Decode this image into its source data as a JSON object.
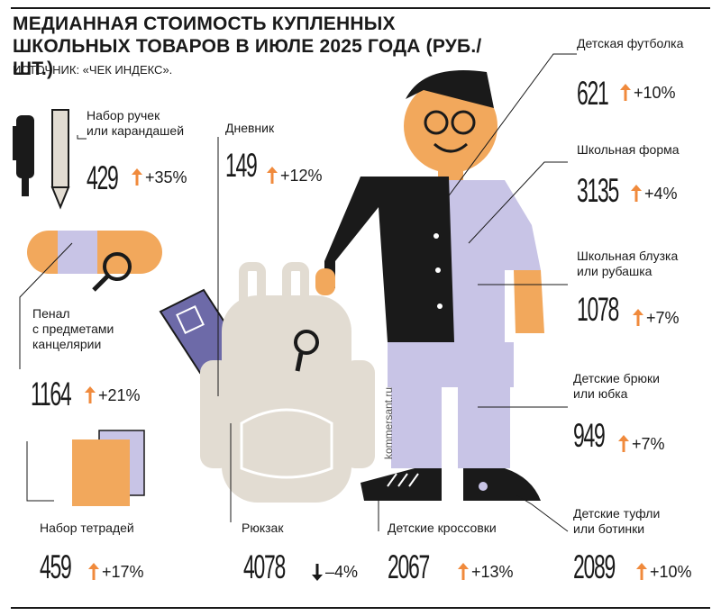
{
  "title": "МЕДИАННАЯ СТОИМОСТЬ КУПЛЕННЫХ ШКОЛЬНЫХ ТОВАРОВ В ИЮЛЕ 2025 ГОДА (РУБ./ШТ.)",
  "source": "ИСТОЧНИК: «ЧЕК ИНДЕКС».",
  "watermark": "kommersant.ru",
  "colors": {
    "up": "#f08a3c",
    "down": "#1a1a1a",
    "accent_orange": "#f2a85c",
    "lavender": "#c8c4e6",
    "beige": "#e2dcd2",
    "black": "#1a1a1a"
  },
  "chart_data": {
    "type": "table",
    "title": "МЕДИАННАЯ СТОИМОСТЬ КУПЛЕННЫХ ШКОЛЬНЫХ ТОВАРОВ В ИЮЛЕ 2025 ГОДА (РУБ./ШТ.)",
    "columns": [
      "item",
      "price",
      "change"
    ],
    "items": [
      {
        "label": "Набор ручек или карандашей",
        "label_lines": [
          "Набор ручек",
          "или карандашей"
        ],
        "price": 429,
        "price_text": "429",
        "change_pct": 35,
        "change_text": "+35%",
        "direction": "up"
      },
      {
        "label": "Дневник",
        "label_lines": [
          "Дневник"
        ],
        "price": 149,
        "price_text": "149",
        "change_pct": 12,
        "change_text": "+12%",
        "direction": "up"
      },
      {
        "label": "Пенал с предметами канцелярии",
        "label_lines": [
          "Пенал",
          "с предметами",
          "канцелярии"
        ],
        "price": 1164,
        "price_text": "1164",
        "change_pct": 21,
        "change_text": "+21%",
        "direction": "up"
      },
      {
        "label": "Набор тетрадей",
        "label_lines": [
          "Набор тетрадей"
        ],
        "price": 459,
        "price_text": "459",
        "change_pct": 17,
        "change_text": "+17%",
        "direction": "up"
      },
      {
        "label": "Рюкзак",
        "label_lines": [
          "Рюкзак"
        ],
        "price": 4078,
        "price_text": "4078",
        "change_pct": -4,
        "change_text": "–4%",
        "direction": "down"
      },
      {
        "label": "Детские кроссовки",
        "label_lines": [
          "Детские кроссовки"
        ],
        "price": 2067,
        "price_text": "2067",
        "change_pct": 13,
        "change_text": "+13%",
        "direction": "up"
      },
      {
        "label": "Детская футболка",
        "label_lines": [
          "Детская футболка"
        ],
        "price": 621,
        "price_text": "621",
        "change_pct": 10,
        "change_text": "+10%",
        "direction": "up"
      },
      {
        "label": "Школьная форма",
        "label_lines": [
          "Школьная форма"
        ],
        "price": 3135,
        "price_text": "3135",
        "change_pct": 4,
        "change_text": "+4%",
        "direction": "up"
      },
      {
        "label": "Школьная блузка или рубашка",
        "label_lines": [
          "Школьная блузка",
          "или рубашка"
        ],
        "price": 1078,
        "price_text": "1078",
        "change_pct": 7,
        "change_text": "+7%",
        "direction": "up"
      },
      {
        "label": "Детские брюки или юбка",
        "label_lines": [
          "Детские брюки",
          "или юбка"
        ],
        "price": 949,
        "price_text": "949",
        "change_pct": 7,
        "change_text": "+7%",
        "direction": "up"
      },
      {
        "label": "Детские туфли или ботинки",
        "label_lines": [
          "Детские туфли",
          "или ботинки"
        ],
        "price": 2089,
        "price_text": "2089",
        "change_pct": 10,
        "change_text": "+10%",
        "direction": "up"
      }
    ]
  }
}
